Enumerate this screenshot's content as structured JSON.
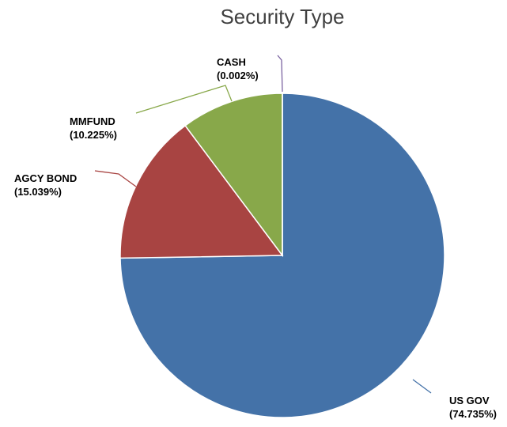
{
  "chart_data": {
    "type": "pie",
    "title": "Security Type",
    "slices": [
      {
        "label": "US GOV",
        "percent_text": "(74.735%)",
        "value": 74.735,
        "color": "#4472A8"
      },
      {
        "label": "AGCY BOND",
        "percent_text": "(15.039%)",
        "value": 15.039,
        "color": "#A84442"
      },
      {
        "label": "MMFUND",
        "percent_text": "(10.225%)",
        "value": 10.225,
        "color": "#88A84A"
      },
      {
        "label": "CASH",
        "percent_text": "(0.002%)",
        "value": 0.002,
        "color": "#7A62A0"
      }
    ],
    "start": "12 o'clock",
    "direction": "clockwise",
    "legend": "none",
    "data_labels": "outside with leader lines"
  }
}
